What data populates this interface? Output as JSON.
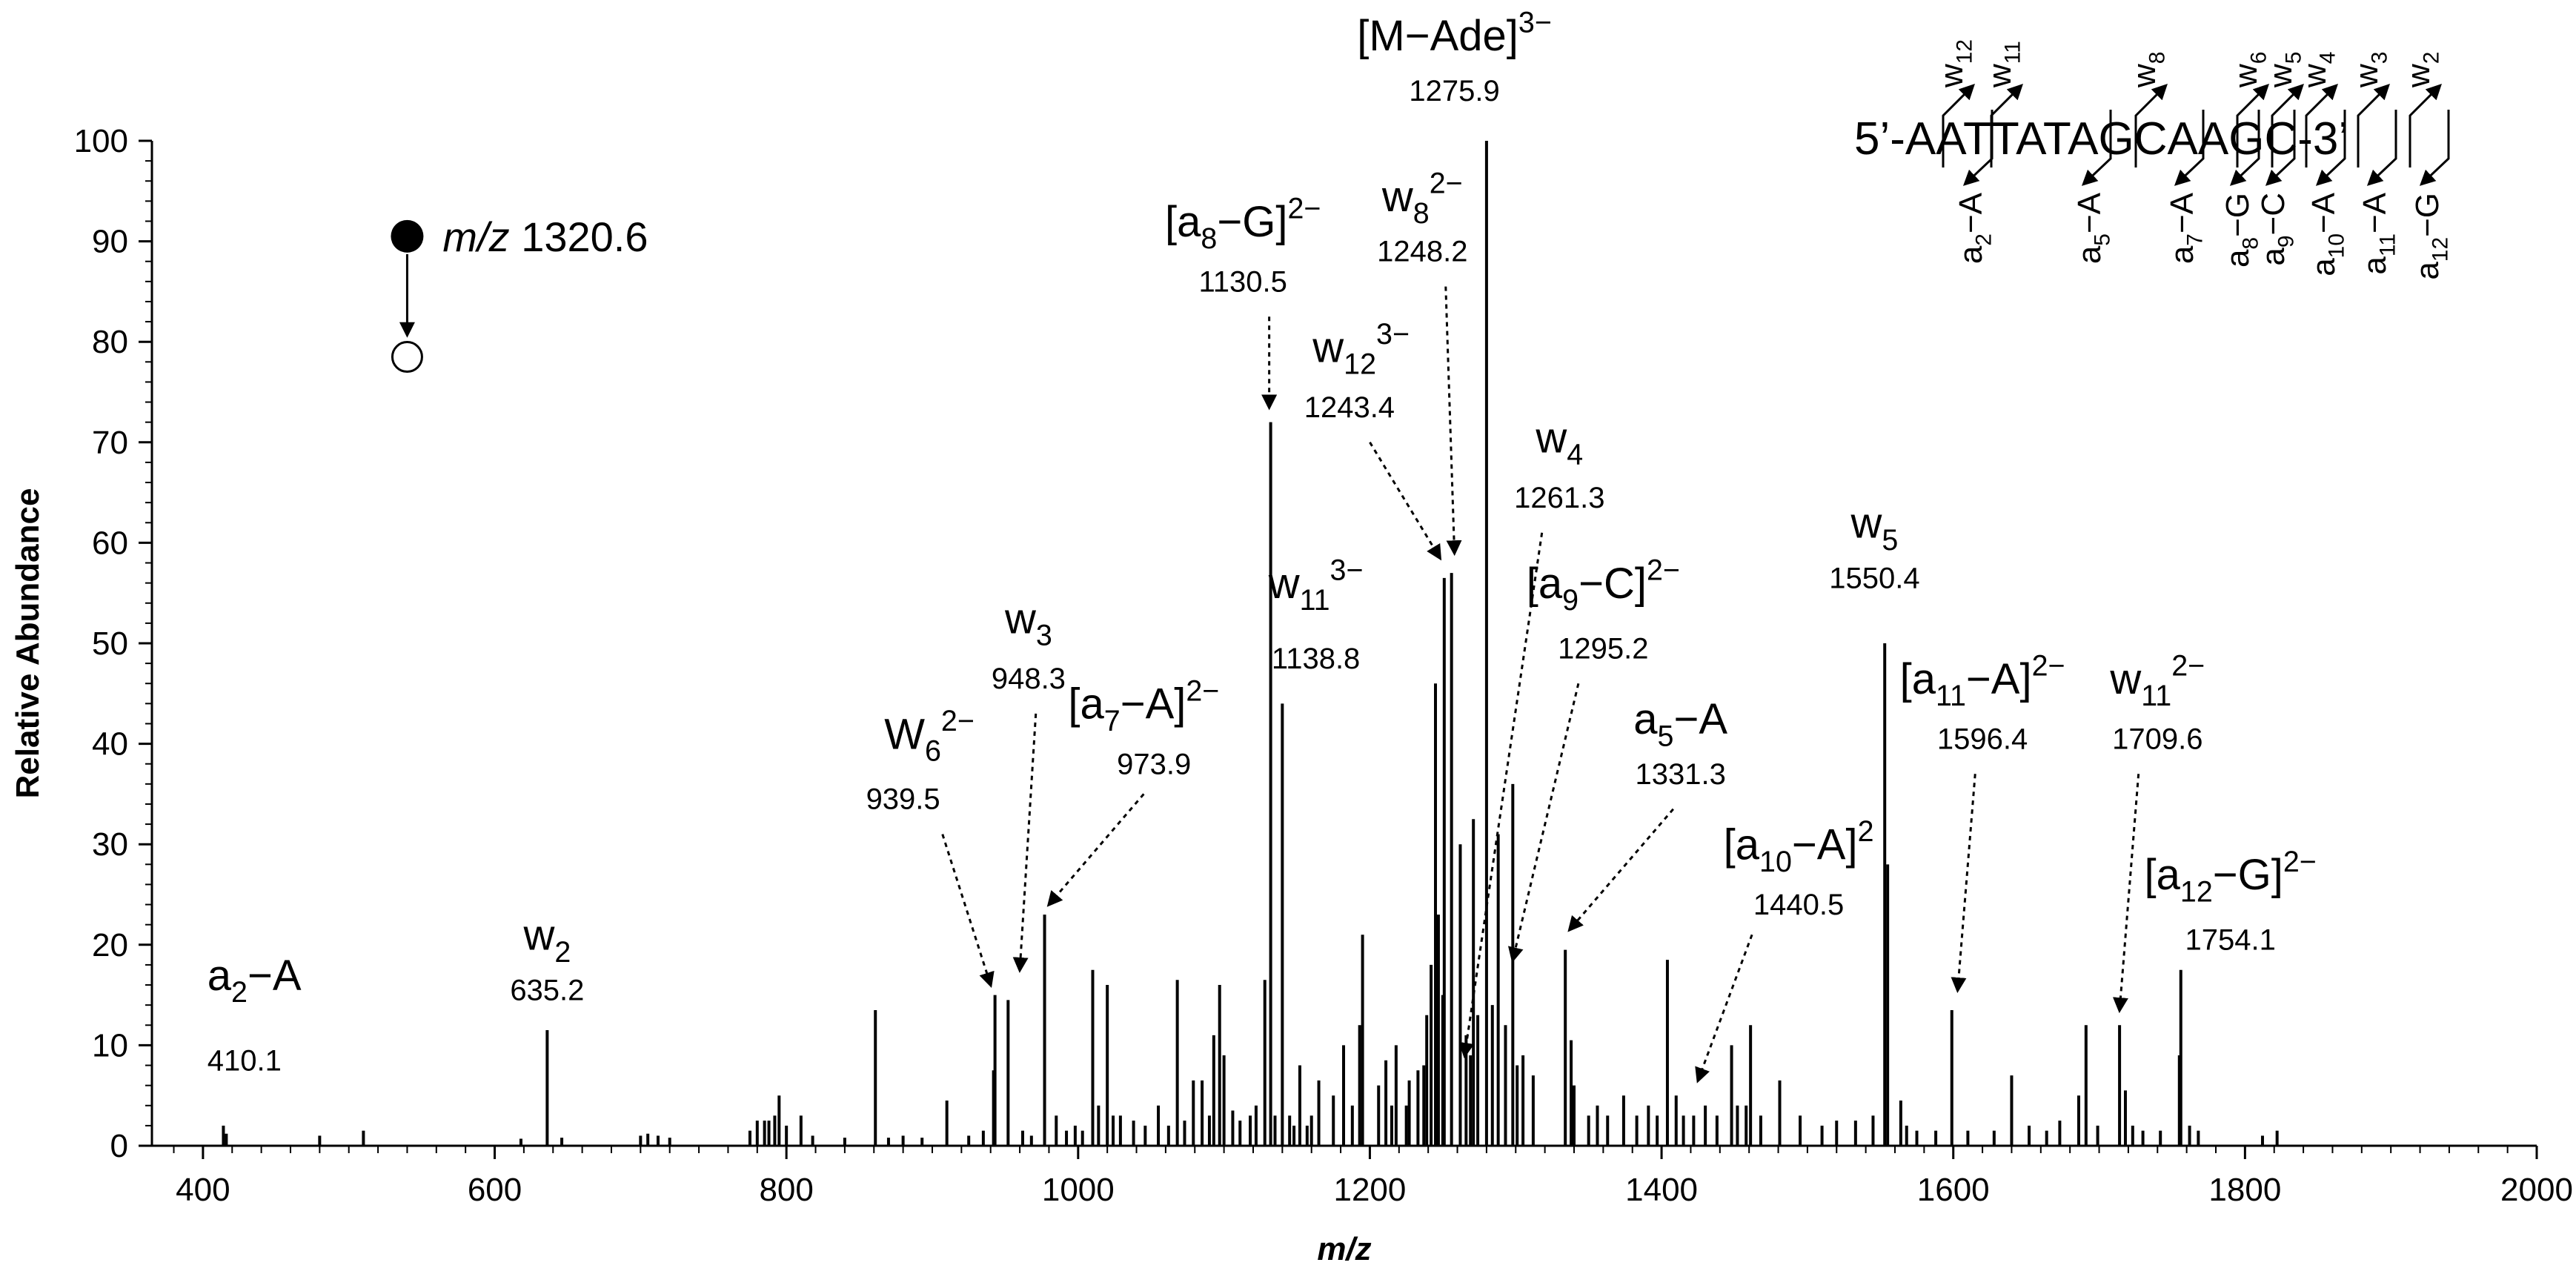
{
  "chart_data": {
    "type": "bar",
    "subtype": "mass-spectrum",
    "xlabel": "m/z",
    "ylabel": "Relative Abundance",
    "xlim": [
      365,
      2000
    ],
    "ylim": [
      0,
      100
    ],
    "x_ticks": [
      400,
      600,
      800,
      1000,
      1200,
      1400,
      1600,
      1800,
      2000
    ],
    "y_ticks": [
      0,
      10,
      20,
      30,
      40,
      50,
      60,
      70,
      80,
      90,
      100
    ],
    "precursor": {
      "label_prefix": "m/z",
      "label_value": "1320.6",
      "filled_y": 90.5,
      "open_y": 78.5,
      "x_label": 540
    },
    "sequence": {
      "text": "5’-AATTATAGCAAGC-3’",
      "w_labels": [
        {
          "base": "w",
          "sub": "12"
        },
        {
          "base": "w",
          "sub": "11"
        },
        {
          "base": "w",
          "sub": "8"
        },
        {
          "base": "w",
          "sub": "6"
        },
        {
          "base": "w",
          "sub": "5"
        },
        {
          "base": "w",
          "sub": "4"
        },
        {
          "base": "w",
          "sub": "3"
        },
        {
          "base": "w",
          "sub": "2"
        }
      ],
      "a_labels": [
        {
          "base": "a",
          "sub": "2",
          "tail": "−A"
        },
        {
          "base": "a",
          "sub": "5",
          "tail": "−A"
        },
        {
          "base": "a",
          "sub": "7",
          "tail": "−A"
        },
        {
          "base": "a",
          "sub": "8",
          "tail": "−G"
        },
        {
          "base": "a",
          "sub": "9",
          "tail": "−C"
        },
        {
          "base": "a",
          "sub": "10",
          "tail": "−A"
        },
        {
          "base": "a",
          "sub": "11",
          "tail": "−A"
        },
        {
          "base": "a",
          "sub": "12",
          "tail": "−G"
        }
      ]
    },
    "peaks": [
      {
        "x": 1280,
        "y": 100
      },
      {
        "x": 1132,
        "y": 72
      },
      {
        "x": 1256,
        "y": 57
      },
      {
        "x": 1251,
        "y": 56.5
      },
      {
        "x": 1553,
        "y": 50
      },
      {
        "x": 1140,
        "y": 44
      },
      {
        "x": 1245,
        "y": 46
      },
      {
        "x": 1298,
        "y": 36
      },
      {
        "x": 1271,
        "y": 32.5
      },
      {
        "x": 1288,
        "y": 31
      },
      {
        "x": 1262,
        "y": 30
      },
      {
        "x": 1555,
        "y": 28
      },
      {
        "x": 977,
        "y": 23
      },
      {
        "x": 1195,
        "y": 21
      },
      {
        "x": 1334,
        "y": 19.5
      },
      {
        "x": 1404,
        "y": 18.5
      },
      {
        "x": 1010,
        "y": 17.5
      },
      {
        "x": 1756,
        "y": 17.5
      },
      {
        "x": 1068,
        "y": 16.5
      },
      {
        "x": 1097,
        "y": 16
      },
      {
        "x": 1128,
        "y": 16.5
      },
      {
        "x": 1020,
        "y": 16
      },
      {
        "x": 943,
        "y": 15
      },
      {
        "x": 952,
        "y": 14.5
      },
      {
        "x": 861,
        "y": 13.5
      },
      {
        "x": 1599,
        "y": 13.5
      },
      {
        "x": 1461,
        "y": 12
      },
      {
        "x": 1691,
        "y": 12
      },
      {
        "x": 1714,
        "y": 12
      },
      {
        "x": 636,
        "y": 11.5
      },
      {
        "x": 1093,
        "y": 11
      },
      {
        "x": 1448,
        "y": 10
      },
      {
        "x": 1182,
        "y": 10
      },
      {
        "x": 1218,
        "y": 10
      },
      {
        "x": 1338,
        "y": 10.5
      },
      {
        "x": 1100,
        "y": 9
      },
      {
        "x": 1755,
        "y": 9
      },
      {
        "x": 1301,
        "y": 8
      },
      {
        "x": 1237,
        "y": 8
      },
      {
        "x": 1211,
        "y": 8.5
      },
      {
        "x": 942,
        "y": 7.5
      },
      {
        "x": 1640,
        "y": 7
      },
      {
        "x": 1079,
        "y": 6.5
      },
      {
        "x": 1165,
        "y": 6.5
      },
      {
        "x": 1481,
        "y": 6.5
      },
      {
        "x": 1206,
        "y": 6
      },
      {
        "x": 1227,
        "y": 6.5
      },
      {
        "x": 1718,
        "y": 5.5
      },
      {
        "x": 1233,
        "y": 7.5
      },
      {
        "x": 1193,
        "y": 12
      },
      {
        "x": 1152,
        "y": 8
      },
      {
        "x": 1305,
        "y": 9
      },
      {
        "x": 1312,
        "y": 7
      },
      {
        "x": 1686,
        "y": 5
      },
      {
        "x": 1564,
        "y": 4.5
      },
      {
        "x": 1374,
        "y": 5
      },
      {
        "x": 1391,
        "y": 4
      },
      {
        "x": 1430,
        "y": 4
      },
      {
        "x": 1458,
        "y": 4
      },
      {
        "x": 910,
        "y": 4.5
      },
      {
        "x": 795,
        "y": 5
      },
      {
        "x": 810,
        "y": 3
      },
      {
        "x": 1055,
        "y": 4
      },
      {
        "x": 1046,
        "y": 2
      },
      {
        "x": 1038,
        "y": 2.5
      },
      {
        "x": 985,
        "y": 3
      },
      {
        "x": 1029,
        "y": 3
      },
      {
        "x": 1085,
        "y": 6.5
      },
      {
        "x": 1122,
        "y": 4
      },
      {
        "x": 1118,
        "y": 3
      },
      {
        "x": 1175,
        "y": 5
      },
      {
        "x": 1250,
        "y": 15
      },
      {
        "x": 1266,
        "y": 11
      },
      {
        "x": 1274,
        "y": 13
      },
      {
        "x": 1284,
        "y": 14
      },
      {
        "x": 1293,
        "y": 12
      },
      {
        "x": 1242,
        "y": 18
      },
      {
        "x": 1239,
        "y": 13
      },
      {
        "x": 1247,
        "y": 23
      },
      {
        "x": 1269,
        "y": 9
      },
      {
        "x": 1225,
        "y": 4
      },
      {
        "x": 1215,
        "y": 4
      },
      {
        "x": 1188,
        "y": 4
      },
      {
        "x": 1160,
        "y": 3
      },
      {
        "x": 1340,
        "y": 6
      },
      {
        "x": 1350,
        "y": 3
      },
      {
        "x": 1356,
        "y": 4
      },
      {
        "x": 1363,
        "y": 3
      },
      {
        "x": 1383,
        "y": 3
      },
      {
        "x": 1397,
        "y": 3
      },
      {
        "x": 1410,
        "y": 5
      },
      {
        "x": 1415,
        "y": 3
      },
      {
        "x": 1422,
        "y": 3
      },
      {
        "x": 1438,
        "y": 3
      },
      {
        "x": 1452,
        "y": 4
      },
      {
        "x": 1468,
        "y": 3
      },
      {
        "x": 1495,
        "y": 3
      },
      {
        "x": 1510,
        "y": 2
      },
      {
        "x": 1520,
        "y": 2.5
      },
      {
        "x": 1533,
        "y": 2.5
      },
      {
        "x": 1545,
        "y": 3
      },
      {
        "x": 1568,
        "y": 2
      },
      {
        "x": 1575,
        "y": 1.5
      },
      {
        "x": 1588,
        "y": 1.5
      },
      {
        "x": 1610,
        "y": 1.5
      },
      {
        "x": 1628,
        "y": 1.5
      },
      {
        "x": 1652,
        "y": 2
      },
      {
        "x": 1664,
        "y": 1.5
      },
      {
        "x": 1673,
        "y": 2.5
      },
      {
        "x": 1699,
        "y": 2
      },
      {
        "x": 1723,
        "y": 2
      },
      {
        "x": 1730,
        "y": 1.5
      },
      {
        "x": 1742,
        "y": 1.5
      },
      {
        "x": 1762,
        "y": 2
      },
      {
        "x": 1768,
        "y": 1.5
      },
      {
        "x": 1812,
        "y": 1
      },
      {
        "x": 1822,
        "y": 1.5
      },
      {
        "x": 414,
        "y": 2
      },
      {
        "x": 416,
        "y": 1.2
      },
      {
        "x": 480,
        "y": 1
      },
      {
        "x": 510,
        "y": 1.5
      },
      {
        "x": 618,
        "y": 0.7
      },
      {
        "x": 646,
        "y": 0.8
      },
      {
        "x": 700,
        "y": 1
      },
      {
        "x": 705,
        "y": 1.2
      },
      {
        "x": 712,
        "y": 1
      },
      {
        "x": 720,
        "y": 0.8
      },
      {
        "x": 775,
        "y": 1.5
      },
      {
        "x": 780,
        "y": 2.5
      },
      {
        "x": 785,
        "y": 2.5
      },
      {
        "x": 788,
        "y": 2.5
      },
      {
        "x": 792,
        "y": 3
      },
      {
        "x": 800,
        "y": 2
      },
      {
        "x": 818,
        "y": 1
      },
      {
        "x": 840,
        "y": 0.8
      },
      {
        "x": 870,
        "y": 0.8
      },
      {
        "x": 880,
        "y": 1
      },
      {
        "x": 893,
        "y": 0.8
      },
      {
        "x": 925,
        "y": 1
      },
      {
        "x": 935,
        "y": 1.5
      },
      {
        "x": 962,
        "y": 1.5
      },
      {
        "x": 968,
        "y": 1
      },
      {
        "x": 992,
        "y": 1.5
      },
      {
        "x": 998,
        "y": 2
      },
      {
        "x": 1003,
        "y": 1.5
      },
      {
        "x": 1014,
        "y": 4
      },
      {
        "x": 1024,
        "y": 3
      },
      {
        "x": 1062,
        "y": 2
      },
      {
        "x": 1073,
        "y": 2.5
      },
      {
        "x": 1090,
        "y": 3
      },
      {
        "x": 1106,
        "y": 3.5
      },
      {
        "x": 1111,
        "y": 2.5
      },
      {
        "x": 1135,
        "y": 3
      },
      {
        "x": 1145,
        "y": 3
      },
      {
        "x": 1148,
        "y": 2
      },
      {
        "x": 1157,
        "y": 2
      }
    ],
    "annotations": [
      {
        "id": "a2-a",
        "html": "a<sub>2</sub>−A",
        "value": "410.1",
        "tx": 403,
        "ty": 15.5,
        "vx": 403,
        "vy": 7.5,
        "anchor": "start"
      },
      {
        "id": "w2",
        "html": "w<sub>2</sub>",
        "value": "635.2",
        "tx": 636,
        "ty": 19.5,
        "vx": 636,
        "vy": 14.5,
        "anchor": "middle"
      },
      {
        "id": "w6",
        "html": "W<sub>6</sub><sup>2−</sup>",
        "value": "939.5",
        "tx": 898,
        "ty": 39.5,
        "vx": 880,
        "vy": 33.5,
        "anchor": "middle",
        "arrow": [
          [
            907,
            31
          ],
          [
            940,
            16
          ]
        ]
      },
      {
        "id": "w3",
        "html": "w<sub>3</sub>",
        "value": "948.3",
        "tx": 966,
        "ty": 51,
        "vx": 966,
        "vy": 45.5,
        "anchor": "middle",
        "arrow": [
          [
            971,
            43
          ],
          [
            960,
            17.5
          ]
        ]
      },
      {
        "id": "a7-a",
        "html": "[a<sub>7</sub>−A]<sup>2−</sup>",
        "value": "973.9",
        "tx": 1045,
        "ty": 42.5,
        "vx": 1052,
        "vy": 37,
        "anchor": "middle",
        "arrow": [
          [
            1045,
            35
          ],
          [
            980,
            24
          ]
        ]
      },
      {
        "id": "a8-g",
        "html": "[a<sub>8</sub>−G]<sup>2−</sup>",
        "value": "1130.5",
        "tx": 1113,
        "ty": 90.5,
        "vx": 1113,
        "vy": 85,
        "anchor": "middle",
        "arrow": [
          [
            1131,
            82.5
          ],
          [
            1131,
            73.5
          ]
        ]
      },
      {
        "id": "w8",
        "html": "w<sub>8</sub><sup>2−</sup>",
        "value": "1248.2",
        "tx": 1236,
        "ty": 93,
        "vx": 1236,
        "vy": 88,
        "anchor": "middle",
        "arrow": [
          [
            1252,
            85.5
          ],
          [
            1258,
            59
          ]
        ]
      },
      {
        "id": "w12",
        "html": "w<sub>12</sub><sup>3−</sup>",
        "value": "1243.4",
        "tx": 1194,
        "ty": 78,
        "vx": 1186,
        "vy": 72.5,
        "anchor": "middle",
        "arrow": [
          [
            1200,
            70
          ],
          [
            1248,
            58.5
          ]
        ]
      },
      {
        "id": "made",
        "html": "[M−Ade]<sup>3−</sup>",
        "value": "1275.9",
        "tx": 1258,
        "ty": 109,
        "vx": 1258,
        "vy": 104,
        "anchor": "middle"
      },
      {
        "id": "w11-3",
        "html": "w<sub>11</sub><sup>3−</sup>",
        "value": "1138.8",
        "tx": 1163,
        "ty": 54.5,
        "vx": 1163,
        "vy": 47.5,
        "anchor": "middle"
      },
      {
        "id": "w4",
        "html": "w<sub>4</sub>",
        "value": "1261.3",
        "tx": 1330,
        "ty": 69,
        "vx": 1330,
        "vy": 63.5,
        "anchor": "middle",
        "arrow": [
          [
            1318,
            61
          ],
          [
            1265,
            9
          ]
        ]
      },
      {
        "id": "a9-c",
        "html": "[a<sub>9</sub>−C]<sup>2−</sup>",
        "value": "1295.2",
        "tx": 1360,
        "ty": 54.5,
        "vx": 1360,
        "vy": 48.5,
        "anchor": "middle",
        "arrow": [
          [
            1343,
            46
          ],
          [
            1298,
            18.5
          ]
        ]
      },
      {
        "id": "a5-a",
        "html": "a<sub>5</sub>−A",
        "value": "1331.3",
        "tx": 1413,
        "ty": 41,
        "vx": 1413,
        "vy": 36,
        "anchor": "middle",
        "arrow": [
          [
            1408,
            33.5
          ],
          [
            1337,
            21.5
          ]
        ]
      },
      {
        "id": "w5",
        "html": "w<sub>5</sub>",
        "value": "1550.4",
        "tx": 1546,
        "ty": 60.5,
        "vx": 1546,
        "vy": 55.5,
        "anchor": "middle"
      },
      {
        "id": "a10-a",
        "html": "[a<sub>10</sub>−A]<sup>2</sup>",
        "value": "1440.5",
        "tx": 1494,
        "ty": 28.5,
        "vx": 1494,
        "vy": 23,
        "anchor": "middle",
        "arrow": [
          [
            1462,
            21
          ],
          [
            1425,
            6.5
          ]
        ]
      },
      {
        "id": "a11-a",
        "html": "[a<sub>11</sub>−A]<sup>2−</sup>",
        "value": "1596.4",
        "tx": 1620,
        "ty": 45,
        "vx": 1620,
        "vy": 39.5,
        "anchor": "middle",
        "arrow": [
          [
            1615,
            37
          ],
          [
            1603,
            15.5
          ]
        ]
      },
      {
        "id": "w11-2",
        "html": "w<sub>11</sub><sup>2−</sup>",
        "value": "1709.6",
        "tx": 1740,
        "ty": 45,
        "vx": 1740,
        "vy": 39.5,
        "anchor": "middle",
        "arrow": [
          [
            1727,
            37
          ],
          [
            1714,
            13.5
          ]
        ]
      },
      {
        "id": "a12-g",
        "html": "[a<sub>12</sub>−G]<sup>2−</sup>",
        "value": "1754.1",
        "tx": 1790,
        "ty": 25.5,
        "vx": 1790,
        "vy": 19.5,
        "anchor": "middle"
      }
    ]
  }
}
